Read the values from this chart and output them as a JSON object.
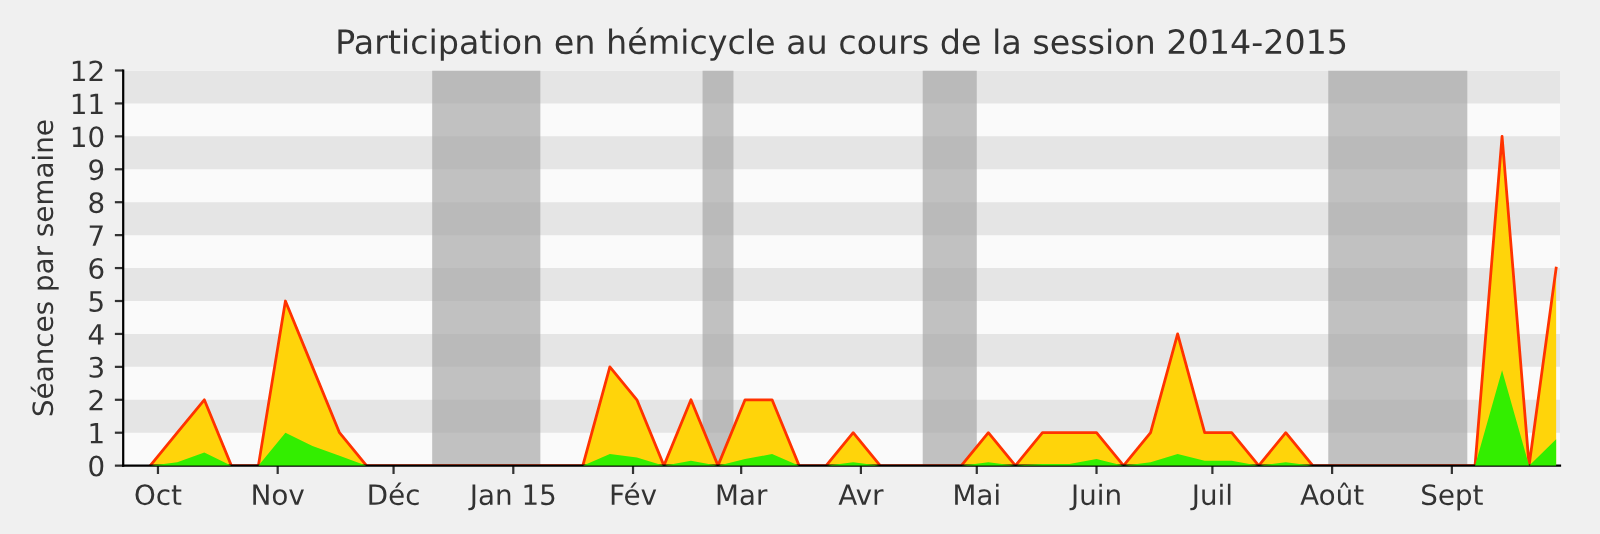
{
  "chart_data": {
    "type": "area",
    "title": "Participation en hémicycle au cours de la session 2014-2015",
    "ylabel": "Séances par semaine",
    "x": [
      "2014-09-29",
      "2014-10-06",
      "2014-10-13",
      "2014-10-20",
      "2014-10-27",
      "2014-11-03",
      "2014-11-10",
      "2014-11-17",
      "2014-11-24",
      "2014-12-01",
      "2014-12-08",
      "2014-12-15",
      "2014-12-22",
      "2014-12-29",
      "2015-01-05",
      "2015-01-12",
      "2015-01-19",
      "2015-01-26",
      "2015-02-02",
      "2015-02-09",
      "2015-02-16",
      "2015-02-23",
      "2015-03-02",
      "2015-03-09",
      "2015-03-16",
      "2015-03-23",
      "2015-03-30",
      "2015-04-06",
      "2015-04-13",
      "2015-04-20",
      "2015-04-27",
      "2015-05-04",
      "2015-05-11",
      "2015-05-18",
      "2015-05-25",
      "2015-06-01",
      "2015-06-08",
      "2015-06-15",
      "2015-06-22",
      "2015-06-29",
      "2015-07-06",
      "2015-07-13",
      "2015-07-20",
      "2015-07-27",
      "2015-08-03",
      "2015-08-10",
      "2015-08-17",
      "2015-08-24",
      "2015-08-31",
      "2015-09-07",
      "2015-09-14",
      "2015-09-21",
      "2015-09-28"
    ],
    "series": [
      {
        "color": "#ffd40a",
        "values": [
          0,
          1,
          2,
          0,
          0,
          5,
          3,
          1,
          0,
          0,
          0,
          0,
          0,
          0,
          0,
          0,
          0,
          3,
          2,
          0,
          2,
          0,
          2,
          2,
          0,
          0,
          1,
          0,
          0,
          0,
          0,
          1,
          0,
          1,
          1,
          1,
          0,
          1,
          4,
          1,
          1,
          0,
          1,
          0,
          0,
          0,
          0,
          0,
          0,
          0,
          10,
          0,
          6
        ]
      },
      {
        "color": "#33ee00",
        "values": [
          0,
          0.1,
          0.4,
          0,
          0,
          1,
          0.6,
          0.3,
          0,
          0,
          0,
          0,
          0,
          0,
          0,
          0,
          0,
          0.35,
          0.25,
          0,
          0.15,
          0,
          0.2,
          0.35,
          0,
          0,
          0.1,
          0,
          0,
          0,
          0,
          0.1,
          0,
          0.05,
          0.05,
          0.2,
          0,
          0.1,
          0.35,
          0.15,
          0.15,
          0,
          0.1,
          0,
          0,
          0,
          0,
          0,
          0,
          0,
          2.9,
          0,
          0.8
        ]
      }
    ],
    "bands": [
      {
        "axis": "y",
        "from": 1,
        "to": 2,
        "color": "#e5e5e5"
      },
      {
        "axis": "y",
        "from": 3,
        "to": 4,
        "color": "#e5e5e5"
      },
      {
        "axis": "y",
        "from": 5,
        "to": 6,
        "color": "#e5e5e5"
      },
      {
        "axis": "y",
        "from": 7,
        "to": 8,
        "color": "#e5e5e5"
      },
      {
        "axis": "y",
        "from": 9,
        "to": 10,
        "color": "#e5e5e5"
      },
      {
        "axis": "y",
        "from": 11,
        "to": 12,
        "color": "#e5e5e5"
      },
      {
        "axis": "x",
        "from": "2014-12-11",
        "to": "2015-01-08",
        "color": "#a8a8a8"
      },
      {
        "axis": "x",
        "from": "2015-02-19",
        "to": "2015-02-27",
        "color": "#a8a8a8"
      },
      {
        "axis": "x",
        "from": "2015-04-17",
        "to": "2015-05-01",
        "color": "#a8a8a8"
      },
      {
        "axis": "x",
        "from": "2015-07-31",
        "to": "2015-09-05",
        "color": "#a8a8a8"
      }
    ],
    "xlim": [
      "2014-09-22",
      "2015-09-29"
    ],
    "xticks": [
      {
        "value": "2014-10-01",
        "label": "Oct"
      },
      {
        "value": "2014-11-01",
        "label": "Nov"
      },
      {
        "value": "2014-12-01",
        "label": "Déc"
      },
      {
        "value": "2015-01-01",
        "label": "Jan 15"
      },
      {
        "value": "2015-02-01",
        "label": "Fév"
      },
      {
        "value": "2015-03-01",
        "label": "Mar"
      },
      {
        "value": "2015-04-01",
        "label": "Avr"
      },
      {
        "value": "2015-05-01",
        "label": "Mai"
      },
      {
        "value": "2015-06-01",
        "label": "Juin"
      },
      {
        "value": "2015-07-01",
        "label": "Juil"
      },
      {
        "value": "2015-08-01",
        "label": "Août"
      },
      {
        "value": "2015-09-01",
        "label": "Sept"
      }
    ],
    "ylim": [
      0,
      12
    ],
    "yticks": [
      0,
      1,
      2,
      3,
      4,
      5,
      6,
      7,
      8,
      9,
      10,
      11,
      12
    ]
  }
}
